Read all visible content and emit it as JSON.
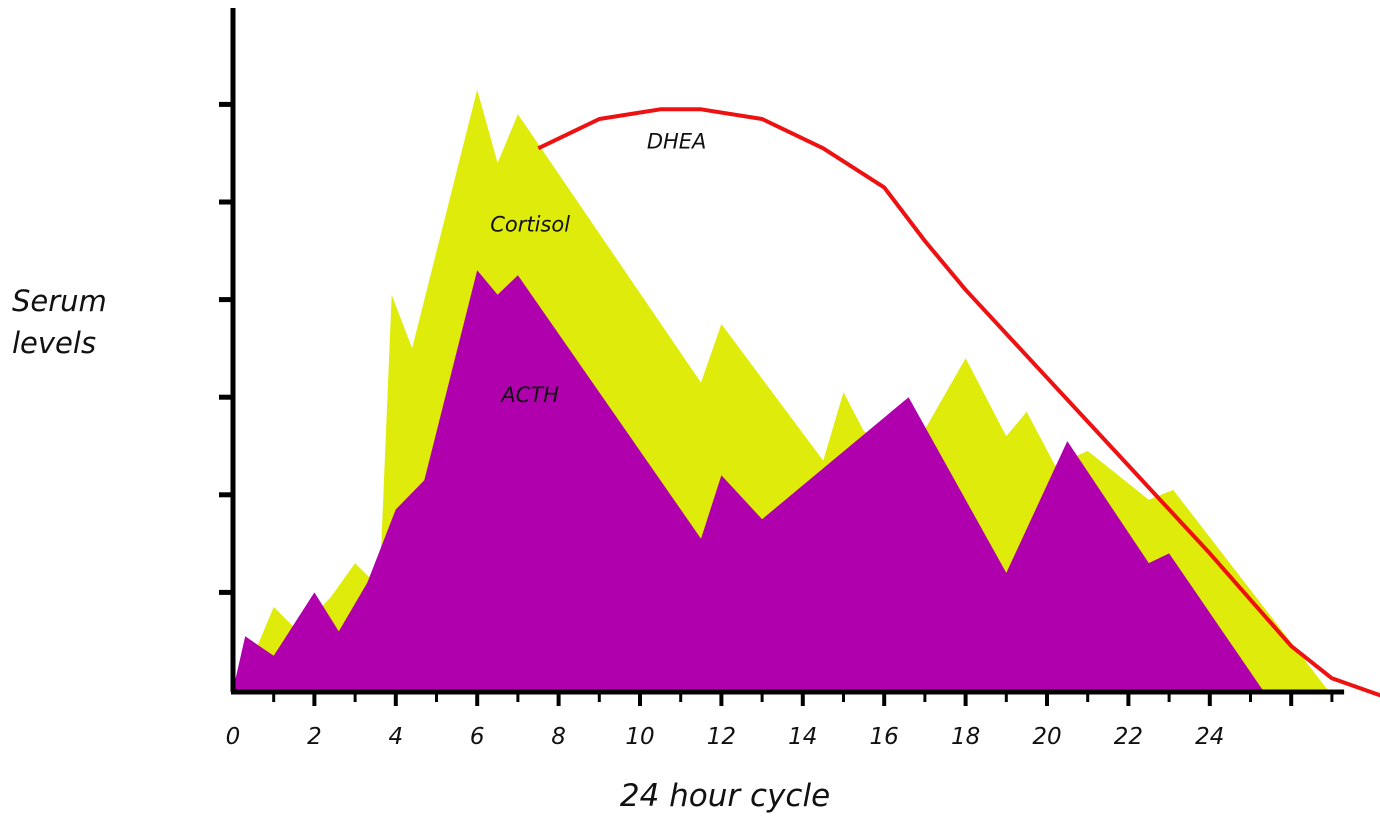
{
  "chart_data": {
    "type": "area",
    "xlabel": "24 hour cycle",
    "ylabel": [
      "Serum",
      "levels"
    ],
    "x_ticks": [
      0,
      2,
      4,
      6,
      8,
      10,
      12,
      14,
      16,
      18,
      20,
      22,
      24
    ],
    "xlim": [
      0,
      28
    ],
    "ylim": [
      0,
      6
    ],
    "grid": false,
    "legend": "none",
    "series": [
      {
        "name": "Cortisol",
        "kind": "area",
        "color": "#dfeb0a",
        "points": [
          [
            0,
            0
          ],
          [
            0.5,
            0.35
          ],
          [
            1,
            0.85
          ],
          [
            1.6,
            0.6
          ],
          [
            2.4,
            0.95
          ],
          [
            3,
            1.3
          ],
          [
            3.6,
            1.05
          ],
          [
            3.9,
            4.05
          ],
          [
            4.4,
            3.5
          ],
          [
            6,
            6.15
          ],
          [
            6.5,
            5.4
          ],
          [
            7,
            5.9
          ],
          [
            11.5,
            3.15
          ],
          [
            12,
            3.75
          ],
          [
            14.5,
            2.35
          ],
          [
            15,
            3.05
          ],
          [
            15.5,
            2.65
          ],
          [
            16.7,
            2.45
          ],
          [
            18,
            3.4
          ],
          [
            19,
            2.6
          ],
          [
            19.5,
            2.85
          ],
          [
            20.2,
            2.3
          ],
          [
            21,
            2.45
          ],
          [
            22.5,
            1.95
          ],
          [
            23.1,
            2.05
          ],
          [
            26.9,
            0
          ]
        ]
      },
      {
        "name": "ACTH",
        "kind": "area",
        "color": "#b000ad",
        "points": [
          [
            0,
            0
          ],
          [
            0.3,
            0.55
          ],
          [
            1,
            0.35
          ],
          [
            2,
            1
          ],
          [
            2.6,
            0.6
          ],
          [
            3.3,
            1.1
          ],
          [
            4,
            1.85
          ],
          [
            4.7,
            2.15
          ],
          [
            6,
            4.3
          ],
          [
            6.5,
            4.05
          ],
          [
            7,
            4.25
          ],
          [
            11.5,
            1.55
          ],
          [
            12,
            2.2
          ],
          [
            13,
            1.75
          ],
          [
            16.6,
            3
          ],
          [
            19,
            1.2
          ],
          [
            20.5,
            2.55
          ],
          [
            22.5,
            1.3
          ],
          [
            23,
            1.4
          ],
          [
            25.3,
            0
          ]
        ]
      },
      {
        "name": "DHEA",
        "kind": "line",
        "color": "#ee1111",
        "points": [
          [
            7.5,
            5.55
          ],
          [
            9,
            5.85
          ],
          [
            10.5,
            5.95
          ],
          [
            11.5,
            5.95
          ],
          [
            13,
            5.85
          ],
          [
            14.5,
            5.55
          ],
          [
            16,
            5.15
          ],
          [
            17,
            4.6
          ],
          [
            18,
            4.1
          ],
          [
            20,
            3.2
          ],
          [
            22,
            2.3
          ],
          [
            24,
            1.4
          ],
          [
            26,
            0.45
          ],
          [
            27,
            0.12
          ],
          [
            28.5,
            -0.1
          ]
        ]
      }
    ],
    "annotations": [
      {
        "text": "Cortisol",
        "x": 7.3,
        "y": 4.7
      },
      {
        "text": "ACTH",
        "x": 7.3,
        "y": 2.95
      },
      {
        "text": "DHEA",
        "x": 10.9,
        "y": 5.55
      }
    ]
  }
}
